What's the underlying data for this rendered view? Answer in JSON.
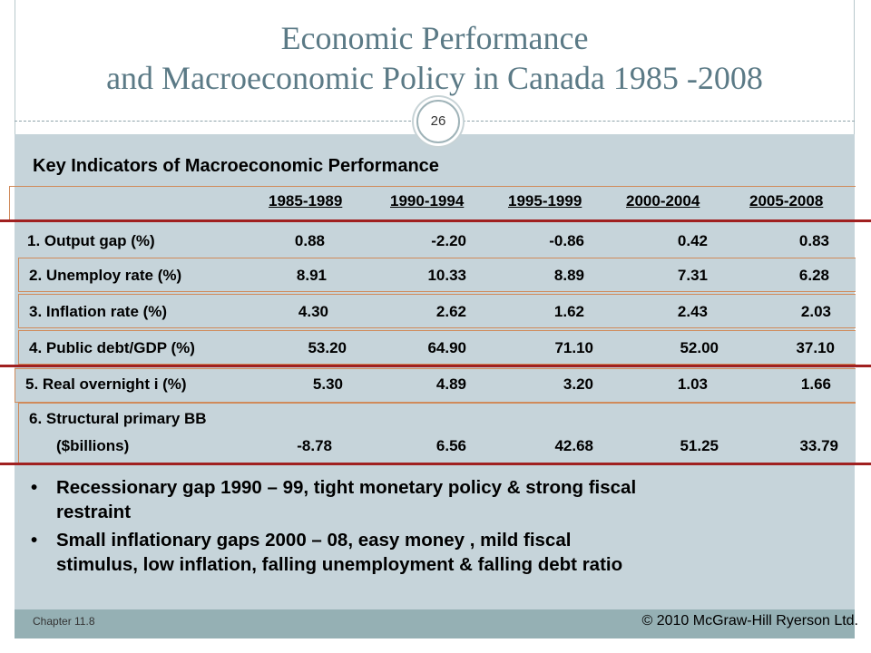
{
  "title": {
    "line1": "Economic Performance",
    "line2": "and Macroeconomic Policy in Canada 1985 -2008"
  },
  "page_number": "26",
  "heading": "Key Indicators of Macroeconomic Performance",
  "periods": [
    "1985-1989",
    "1990-1994",
    "1995-1999",
    "2000-2004",
    "2005-2008"
  ],
  "rows": [
    {
      "label": "1.  Output gap (%)",
      "values": [
        "0.88",
        "-2.20",
        "-0.86",
        "0.42",
        "0.83"
      ]
    },
    {
      "label": "2.  Unemploy rate (%)",
      "values": [
        "8.91",
        "10.33",
        "8.89",
        "7.31",
        "6.28"
      ]
    },
    {
      "label": "3.  Inflation rate (%)",
      "values": [
        "4.30",
        "2.62",
        "1.62",
        "2.43",
        "2.03"
      ]
    },
    {
      "label": "4.  Public debt/GDP (%)",
      "values": [
        "53.20",
        "64.90",
        "71.10",
        "52.00",
        "37.10"
      ]
    },
    {
      "label": "5.  Real overnight i (%)",
      "values": [
        "5.30",
        "4.89",
        "3.20",
        "1.03",
        "1.66"
      ]
    },
    {
      "label_line1": "6.   Structural primary BB",
      "label_line2": "($billions)",
      "values": [
        "-8.78",
        "6.56",
        "42.68",
        "51.25",
        "33.79"
      ]
    }
  ],
  "bullets": [
    {
      "line1": "Recessionary gap 1990 – 99, tight monetary policy & strong fiscal",
      "line2": "restraint"
    },
    {
      "line1": "Small inflationary gaps 2000 – 08, easy money , mild fiscal",
      "line2": "stimulus, low inflation, falling unemployment & falling debt ratio"
    }
  ],
  "bullet_glyph": "•",
  "footer": {
    "chapter": "Chapter 11.8",
    "copyright": "© 2010 McGraw-Hill Ryerson Ltd."
  },
  "colors": {
    "title": "#5b7a86",
    "content_bg": "#c6d4da",
    "footer_bg": "#95b0b4",
    "red_rule": "#a02020",
    "row_border": "#d08a5a"
  }
}
